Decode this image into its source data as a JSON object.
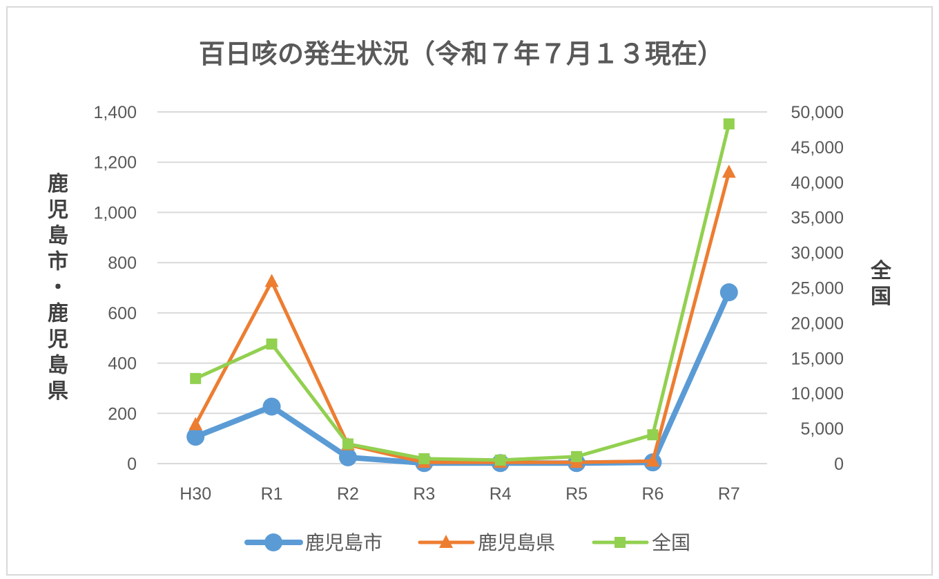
{
  "chart_data": {
    "type": "line",
    "title": "百日咳の発生状況（令和７年７月１３現在）",
    "categories": [
      "H30",
      "R1",
      "R2",
      "R3",
      "R4",
      "R5",
      "R6",
      "R7"
    ],
    "ylabel": "鹿児島市・鹿児島県",
    "y2label": "全国",
    "ylim": [
      0,
      1400
    ],
    "y2lim": [
      0,
      50000
    ],
    "yticks": [
      "0",
      "200",
      "400",
      "600",
      "800",
      "1,000",
      "1,200",
      "1,400"
    ],
    "y2ticks": [
      "0",
      "5,000",
      "10,000",
      "15,000",
      "20,000",
      "25,000",
      "30,000",
      "35,000",
      "40,000",
      "45,000",
      "50,000"
    ],
    "grid": true,
    "legend_position": "bottom",
    "series": [
      {
        "name": "鹿児島市",
        "axis": "left",
        "color": "#5B9BD5",
        "marker": "circle",
        "values": [
          107,
          227,
          25,
          2,
          2,
          2,
          5,
          682
        ]
      },
      {
        "name": "鹿児島県",
        "axis": "left",
        "color": "#ED7D31",
        "marker": "triangle",
        "values": [
          155,
          725,
          75,
          5,
          5,
          5,
          10,
          1160
        ]
      },
      {
        "name": "全国",
        "axis": "right",
        "color": "#92D050",
        "marker": "square",
        "values": [
          12100,
          17000,
          2800,
          700,
          500,
          1000,
          4100,
          48300
        ]
      }
    ]
  }
}
